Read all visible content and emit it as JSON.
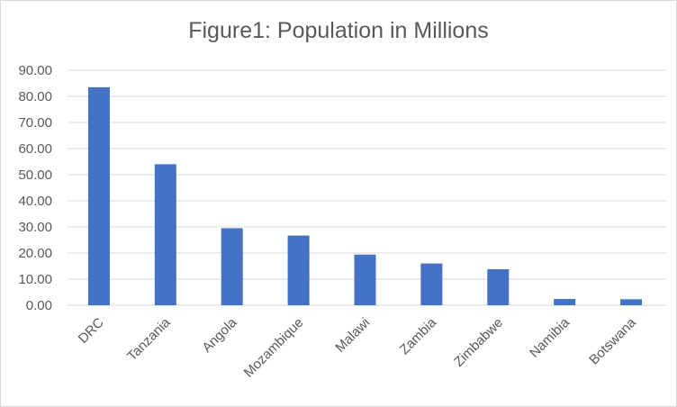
{
  "chart_data": {
    "type": "bar",
    "title": "Figure1: Population in Millions",
    "xlabel": "",
    "ylabel": "",
    "categories": [
      "DRC",
      "Tanzania",
      "Angola",
      "Mozambique",
      "Malawi",
      "Zambia",
      "Zimbabwe",
      "Namibia",
      "Botswana"
    ],
    "values": [
      83.5,
      54.0,
      29.5,
      26.7,
      19.4,
      16.0,
      13.8,
      2.4,
      2.3
    ],
    "ylim": [
      0,
      90
    ],
    "yticks": [
      "0.00",
      "10.00",
      "20.00",
      "30.00",
      "40.00",
      "50.00",
      "60.00",
      "70.00",
      "80.00",
      "90.00"
    ],
    "grid": true,
    "legend": "none",
    "bar_color": "#4472c4",
    "grid_color": "#d9d9d9",
    "text_color": "#595959"
  }
}
